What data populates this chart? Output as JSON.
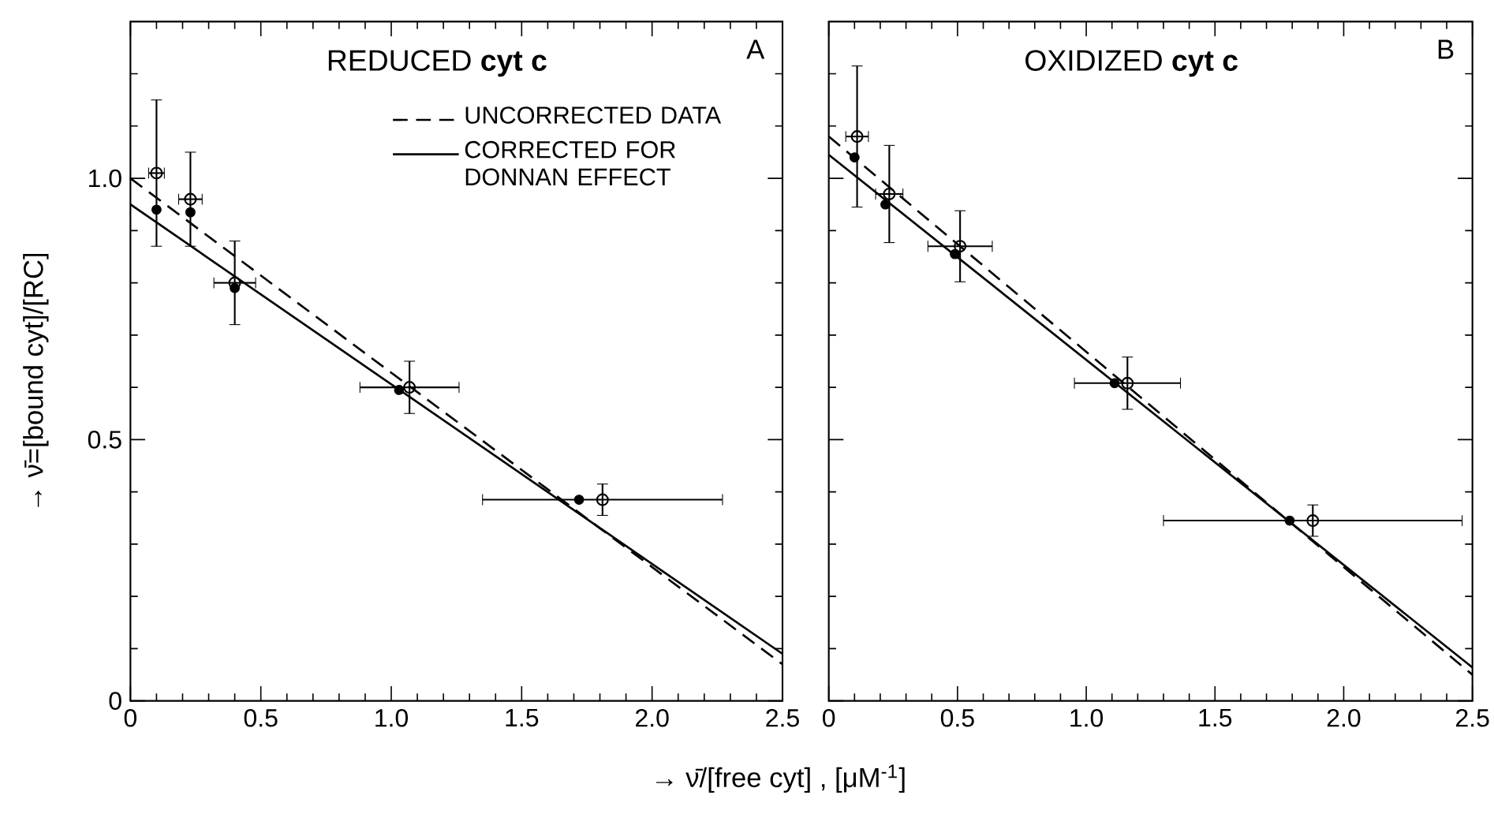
{
  "chart_data": [
    {
      "type": "scatter",
      "title": "REDUCED **cyt c**",
      "xlabel": "→   ν̄/[free cyt] , [μM$^{-1}$]",
      "ylabel": "→ ν̄=[bound cyt]/[RC]",
      "annotations": [
        "A"
      ],
      "legend": "top right",
      "xlim": [
        0,
        2.5
      ],
      "ylim": [
        0,
        1.3
      ],
      "xticks": [
        0,
        {
          "value": 0.1,
          "label": null
        },
        {
          "value": 0.2,
          "label": null
        },
        {
          "value": 0.3,
          "label": null
        },
        {
          "value": 0.4,
          "label": null
        },
        0.5,
        {
          "value": 0.6,
          "label": null
        },
        {
          "value": 0.7,
          "label": null
        },
        {
          "value": 0.8,
          "label": null
        },
        {
          "value": 0.9,
          "label": null
        },
        {
          "value": 1.0,
          "label": "1.0"
        },
        {
          "value": 1.1,
          "label": null
        },
        {
          "value": 1.2,
          "label": null
        },
        {
          "value": 1.3,
          "label": null
        },
        {
          "value": 1.4,
          "label": null
        },
        1.5,
        {
          "value": 1.6,
          "label": null
        },
        {
          "value": 1.7,
          "label": null
        },
        {
          "value": 1.8,
          "label": null
        },
        {
          "value": 1.9,
          "label": null
        },
        {
          "value": 2.0,
          "label": "2.0"
        },
        {
          "value": 2.1,
          "label": null
        },
        {
          "value": 2.2,
          "label": null
        },
        {
          "value": 2.3,
          "label": null
        },
        {
          "value": 2.4,
          "label": null
        },
        2.5
      ],
      "yticks": [
        0,
        {
          "value": 0.1,
          "label": null
        },
        {
          "value": 0.2,
          "label": null
        },
        {
          "value": 0.3,
          "label": null
        },
        {
          "value": 0.4,
          "label": null
        },
        0.5,
        {
          "value": 0.6,
          "label": null
        },
        {
          "value": 0.7,
          "label": null
        },
        {
          "value": 0.8,
          "label": null
        },
        {
          "value": 0.9,
          "label": null
        },
        {
          "value": 1.0,
          "label": "1.0"
        },
        {
          "value": 1.1,
          "label": null
        },
        {
          "value": 1.2,
          "label": null
        }
      ],
      "series": [
        {
          "name": "UNCORRECTED DATA",
          "type": "line",
          "line_style": "dashed",
          "color": "#000000",
          "x": [
            0,
            2.5
          ],
          "values": [
            1.0,
            0.07
          ]
        },
        {
          "name": "CORRECTED FOR DONNAN EFFECT",
          "type": "line",
          "line_style": "solid",
          "color": "#000000",
          "x": [
            0,
            2.5
          ],
          "values": [
            0.95,
            0.09
          ]
        },
        {
          "type": "scatter",
          "marker": "circle",
          "color": "#000000",
          "x": [
            0.1,
            0.23,
            0.4,
            1.03,
            1.72
          ],
          "values": [
            0.94,
            0.935,
            0.79,
            0.595,
            0.385
          ]
        },
        {
          "type": "scatter",
          "marker": "circle",
          "color": "#000000",
          "x": [
            0.1,
            0.23,
            0.4,
            1.07,
            1.81
          ],
          "values": [
            1.01,
            0.96,
            0.8,
            0.6,
            0.385
          ],
          "errors": [
            0.14,
            0.09,
            0.08,
            0.05,
            0.03
          ],
          "xerrors": [
            0.03,
            0.045,
            0.08,
            0.19,
            0.46
          ]
        }
      ]
    },
    {
      "type": "scatter",
      "title": "OXIDIZED **cyt c**",
      "annotations": [
        "B"
      ],
      "tick_labels": "x",
      "xlim": [
        0,
        2.5
      ],
      "ylim": [
        0,
        1.3
      ],
      "xticks": [
        0,
        {
          "value": 0.1,
          "label": null
        },
        {
          "value": 0.2,
          "label": null
        },
        {
          "value": 0.3,
          "label": null
        },
        {
          "value": 0.4,
          "label": null
        },
        0.5,
        {
          "value": 0.6,
          "label": null
        },
        {
          "value": 0.7,
          "label": null
        },
        {
          "value": 0.8,
          "label": null
        },
        {
          "value": 0.9,
          "label": null
        },
        {
          "value": 1.0,
          "label": "1.0"
        },
        {
          "value": 1.1,
          "label": null
        },
        {
          "value": 1.2,
          "label": null
        },
        {
          "value": 1.3,
          "label": null
        },
        {
          "value": 1.4,
          "label": null
        },
        1.5,
        {
          "value": 1.6,
          "label": null
        },
        {
          "value": 1.7,
          "label": null
        },
        {
          "value": 1.8,
          "label": null
        },
        {
          "value": 1.9,
          "label": null
        },
        {
          "value": 2.0,
          "label": "2.0"
        },
        {
          "value": 2.1,
          "label": null
        },
        {
          "value": 2.2,
          "label": null
        },
        {
          "value": 2.3,
          "label": null
        },
        {
          "value": 2.4,
          "label": null
        },
        2.5
      ],
      "yticks": [
        0,
        {
          "value": 0.1,
          "label": null
        },
        {
          "value": 0.2,
          "label": null
        },
        {
          "value": 0.3,
          "label": null
        },
        {
          "value": 0.4,
          "label": null
        },
        0.5,
        {
          "value": 0.6,
          "label": null
        },
        {
          "value": 0.7,
          "label": null
        },
        {
          "value": 0.8,
          "label": null
        },
        {
          "value": 0.9,
          "label": null
        },
        1.0,
        {
          "value": 1.1,
          "label": null
        },
        {
          "value": 1.2,
          "label": null
        }
      ],
      "series": [
        {
          "type": "line",
          "line_style": "dashed",
          "color": "#000000",
          "x": [
            0,
            2.5
          ],
          "values": [
            1.08,
            0.05
          ]
        },
        {
          "type": "line",
          "line_style": "solid",
          "color": "#000000",
          "x": [
            0,
            2.5
          ],
          "values": [
            1.045,
            0.064
          ]
        },
        {
          "type": "scatter",
          "marker": "circle",
          "color": "#000000",
          "x": [
            0.1,
            0.22,
            0.49,
            1.11,
            1.79
          ],
          "values": [
            1.04,
            0.95,
            0.855,
            0.608,
            0.345
          ]
        },
        {
          "type": "scatter",
          "marker": "circle",
          "color": "#000000",
          "x": [
            0.11,
            0.235,
            0.51,
            1.16,
            1.88
          ],
          "values": [
            1.08,
            0.97,
            0.87,
            0.608,
            0.345
          ],
          "errors": [
            0.135,
            0.093,
            0.068,
            0.05,
            0.03
          ],
          "xerrors": [
            0.044,
            0.053,
            0.125,
            0.206,
            0.58
          ]
        }
      ]
    }
  ]
}
